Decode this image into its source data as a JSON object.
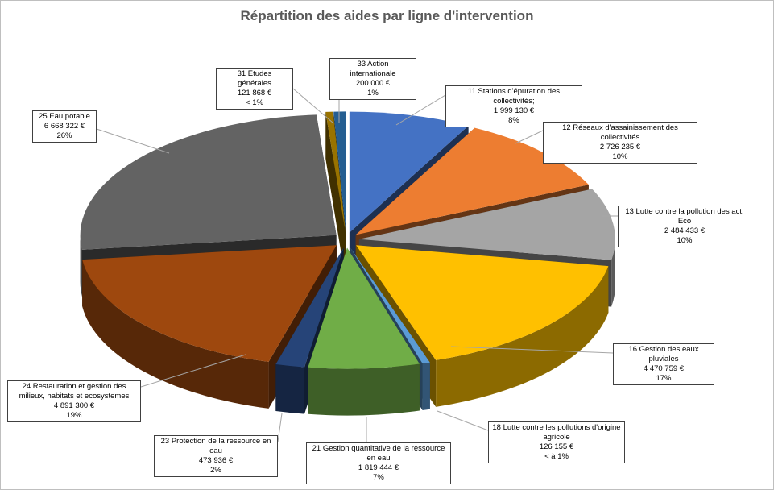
{
  "chart_data": {
    "type": "pie",
    "variant": "3d-exploded",
    "title": "Répartition des aides par ligne d'intervention",
    "slices": [
      {
        "name": "11 Stations d'épuration des collectivités;",
        "amount": 1999130,
        "amount_label": "1 999 130 €",
        "pct_label": "8%",
        "color": "#4472c4"
      },
      {
        "name": "12 Réseaux d'assainissement des collectivités",
        "amount": 2726235,
        "amount_label": "2 726 235 €",
        "pct_label": "10%",
        "color": "#ed7d31"
      },
      {
        "name": "13 Lutte contre la pollution des act. Eco",
        "amount": 2484433,
        "amount_label": "2 484 433 €",
        "pct_label": "10%",
        "color": "#a5a5a5"
      },
      {
        "name": "16 Gestion des eaux pluviales",
        "amount": 4470759,
        "amount_label": "4 470 759 €",
        "pct_label": "17%",
        "color": "#ffc000"
      },
      {
        "name": "18 Lutte contre les pollutions d'origine agricole",
        "amount": 126155,
        "amount_label": "126 155 €",
        "pct_label": "< à 1%",
        "color": "#5b9bd5"
      },
      {
        "name": "21 Gestion quantitative de la ressource en eau",
        "amount": 1819444,
        "amount_label": "1 819 444 €",
        "pct_label": "7%",
        "color": "#70ad47"
      },
      {
        "name": "23 Protection de la ressource en eau",
        "amount": 473936,
        "amount_label": "473 936 €",
        "pct_label": "2%",
        "color": "#264478"
      },
      {
        "name": "24 Restauration et gestion des milieux, habitats et ecosystemes",
        "amount": 4891300,
        "amount_label": "4 891 300 €",
        "pct_label": "19%",
        "color": "#9e480e"
      },
      {
        "name": "25 Eau potable",
        "amount": 6668322,
        "amount_label": "6 668 322 €",
        "pct_label": "26%",
        "color": "#636363"
      },
      {
        "name": "31 Etudes générales",
        "amount": 121868,
        "amount_label": "121 868 €",
        "pct_label": "< 1%",
        "color": "#997300"
      },
      {
        "name": "33 Action internationale",
        "amount": 200000,
        "amount_label": "200 000 €",
        "pct_label": "1%",
        "color": "#255e91"
      }
    ]
  }
}
